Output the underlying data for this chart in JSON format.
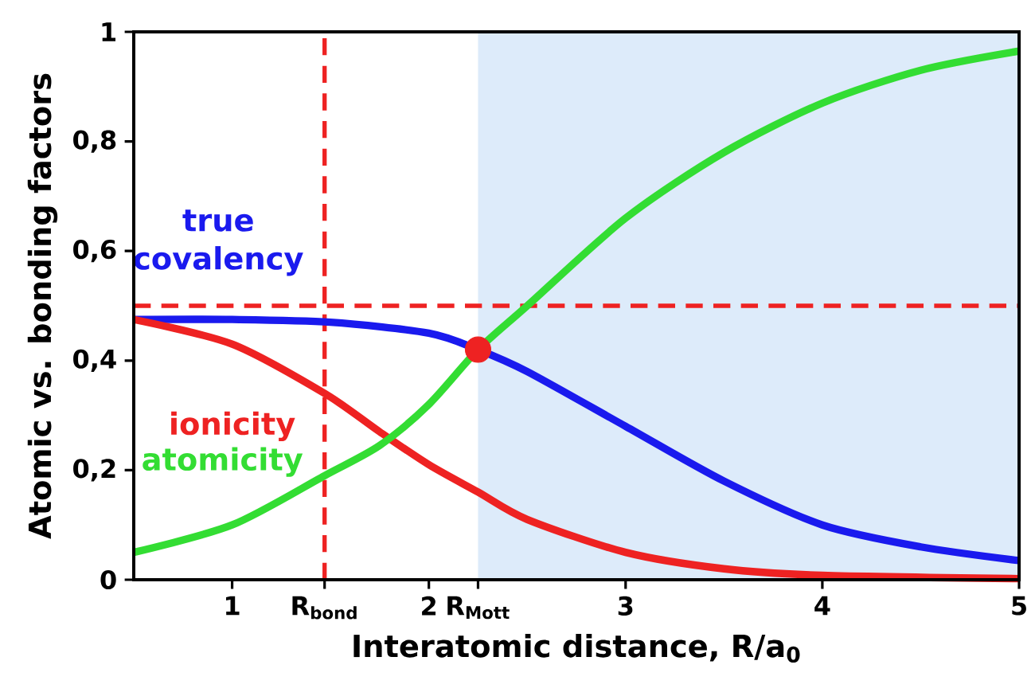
{
  "chart_data": {
    "type": "line",
    "xlabel": "Interatomic distance, R/a$_{0}$",
    "ylabel": "Atomic vs. bonding factors",
    "xlim": [
      0.5,
      5
    ],
    "ylim": [
      0,
      1
    ],
    "xticks": [
      1,
      {
        "value": 1.47,
        "label": "R$_{bond}$"
      },
      2,
      {
        "value": 2.25,
        "label": "R$_{Mott}$"
      },
      3,
      4,
      5
    ],
    "yticks": [
      0,
      {
        "value": 0.2,
        "label": "0,2"
      },
      {
        "value": 0.4,
        "label": "0,4"
      },
      {
        "value": 0.6,
        "label": "0,6"
      },
      {
        "value": 0.8,
        "label": "0,8"
      },
      1
    ],
    "series": [
      {
        "name": "true covalency",
        "color": "#1a1aee",
        "x": [
          0.5,
          1,
          1.5,
          2,
          2.25,
          2.5,
          3,
          3.5,
          4,
          4.5,
          5
        ],
        "values": [
          0.475,
          0.475,
          0.47,
          0.45,
          0.42,
          0.38,
          0.28,
          0.18,
          0.1,
          0.06,
          0.035
        ]
      },
      {
        "name": "ionicity",
        "color": "#ee2222",
        "x": [
          0.5,
          1,
          1.47,
          1.75,
          2,
          2.25,
          2.5,
          3,
          3.5,
          4,
          5
        ],
        "values": [
          0.475,
          0.43,
          0.34,
          0.27,
          0.21,
          0.16,
          0.11,
          0.05,
          0.02,
          0.008,
          0.002
        ]
      },
      {
        "name": "atomicity",
        "color": "#33dd33",
        "x": [
          0.5,
          1,
          1.47,
          1.75,
          2,
          2.25,
          2.5,
          3,
          3.5,
          4,
          4.5,
          5
        ],
        "values": [
          0.05,
          0.1,
          0.19,
          0.245,
          0.32,
          0.42,
          0.5,
          0.66,
          0.78,
          0.87,
          0.93,
          0.965
        ]
      },
      {
        "type": "scatter",
        "marker": "circle",
        "color": "#ee2222",
        "x": [
          2.25
        ],
        "values": [
          0.42
        ]
      }
    ],
    "ref_lines": [
      {
        "axis": "x",
        "value": 1.47,
        "color": "#ee2222",
        "line_style": "dashed"
      },
      {
        "axis": "y",
        "value": 0.5,
        "color": "#ee2222",
        "line_style": "dashed"
      }
    ],
    "bands": [
      {
        "axis": "x",
        "from": 2.25,
        "to": 5,
        "color": "#ddebfa"
      }
    ]
  }
}
